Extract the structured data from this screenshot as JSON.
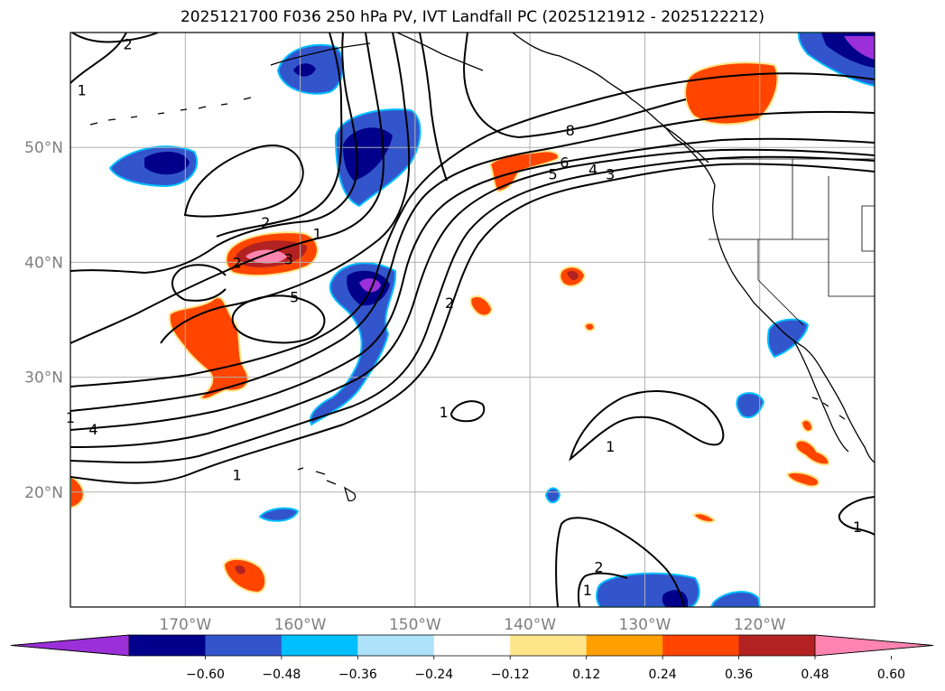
{
  "title": "2025121700 F036 250 hPa PV, IVT Landfall PC (2025121912 - 2025122212)",
  "map": {
    "lon_range": [
      -180,
      -110
    ],
    "lat_range": [
      10,
      60
    ],
    "lon_ticks": [
      {
        "lon": -170,
        "label": "170°W"
      },
      {
        "lon": -160,
        "label": "160°W"
      },
      {
        "lon": -150,
        "label": "150°W"
      },
      {
        "lon": -140,
        "label": "140°W"
      },
      {
        "lon": -130,
        "label": "130°W"
      },
      {
        "lon": -120,
        "label": "120°W"
      }
    ],
    "lat_ticks": [
      {
        "lat": 50,
        "label": "50°N"
      },
      {
        "lat": 40,
        "label": "40°N"
      },
      {
        "lat": 30,
        "label": "30°N"
      },
      {
        "lat": 20,
        "label": "20°N"
      }
    ],
    "grid": true
  },
  "colorbar": {
    "ticks": [
      "−0.60",
      "−0.48",
      "−0.36",
      "−0.24",
      "−0.12",
      "0.12",
      "0.24",
      "0.36",
      "0.48",
      "0.60"
    ],
    "colors": [
      "#9b30d9",
      "#00008b",
      "#3355cc",
      "#00bfff",
      "#aee2fa",
      "#ffffff",
      "#ffe58a",
      "#ffa000",
      "#ff4500",
      "#b22222",
      "#ff85b0"
    ],
    "extend": "both"
  },
  "contour_labels": [
    {
      "text": "2",
      "lon": -175,
      "lat": 59
    },
    {
      "text": "1",
      "lon": -179,
      "lat": 55
    },
    {
      "text": "2",
      "lon": -163,
      "lat": 43.5
    },
    {
      "text": "1",
      "lon": -158.5,
      "lat": 42.5
    },
    {
      "text": "2",
      "lon": -165.5,
      "lat": 40
    },
    {
      "text": "3",
      "lon": -161,
      "lat": 40.3
    },
    {
      "text": "5",
      "lon": -160.5,
      "lat": 37
    },
    {
      "text": "8",
      "lon": -136.5,
      "lat": 51.5
    },
    {
      "text": "6",
      "lon": -137,
      "lat": 48.7
    },
    {
      "text": "5",
      "lon": -138,
      "lat": 47.7
    },
    {
      "text": "4",
      "lon": -134.5,
      "lat": 48.1
    },
    {
      "text": "3",
      "lon": -133,
      "lat": 47.7
    },
    {
      "text": "2",
      "lon": -147,
      "lat": 36.5
    },
    {
      "text": "1",
      "lon": -180,
      "lat": 26.5
    },
    {
      "text": "4",
      "lon": -178,
      "lat": 25.5
    },
    {
      "text": "1",
      "lon": -165.5,
      "lat": 21.5
    },
    {
      "text": "1",
      "lon": -147.5,
      "lat": 27
    },
    {
      "text": "1",
      "lon": -133,
      "lat": 24
    },
    {
      "text": "2",
      "lon": -134,
      "lat": 13.5
    },
    {
      "text": "1",
      "lon": -135,
      "lat": 11.5
    },
    {
      "text": "1",
      "lon": -111.5,
      "lat": 17
    }
  ]
}
